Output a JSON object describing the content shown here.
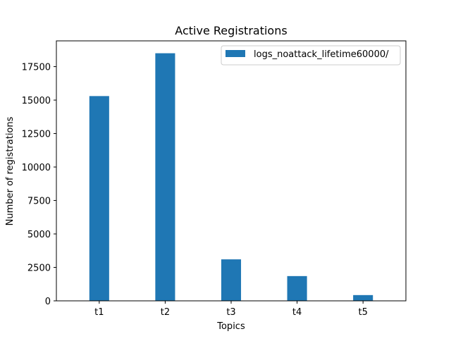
{
  "chart_data": {
    "type": "bar",
    "title": "Active Registrations",
    "xlabel": "Topics",
    "ylabel": "Number of registrations",
    "categories": [
      "t1",
      "t2",
      "t3",
      "t4",
      "t5"
    ],
    "series": [
      {
        "name": "logs_noattack_lifetime60000/",
        "values": [
          15300,
          18500,
          3100,
          1850,
          430
        ],
        "color": "#1f77b4"
      }
    ],
    "ylim": [
      0,
      19425
    ],
    "yticks": [
      0,
      2500,
      5000,
      7500,
      10000,
      12500,
      15000,
      17500
    ],
    "ytick_labels": [
      "0",
      "2500",
      "5000",
      "7500",
      "10000",
      "12500",
      "15000",
      "17500"
    ],
    "grid": false,
    "legend_position": "top-right"
  }
}
